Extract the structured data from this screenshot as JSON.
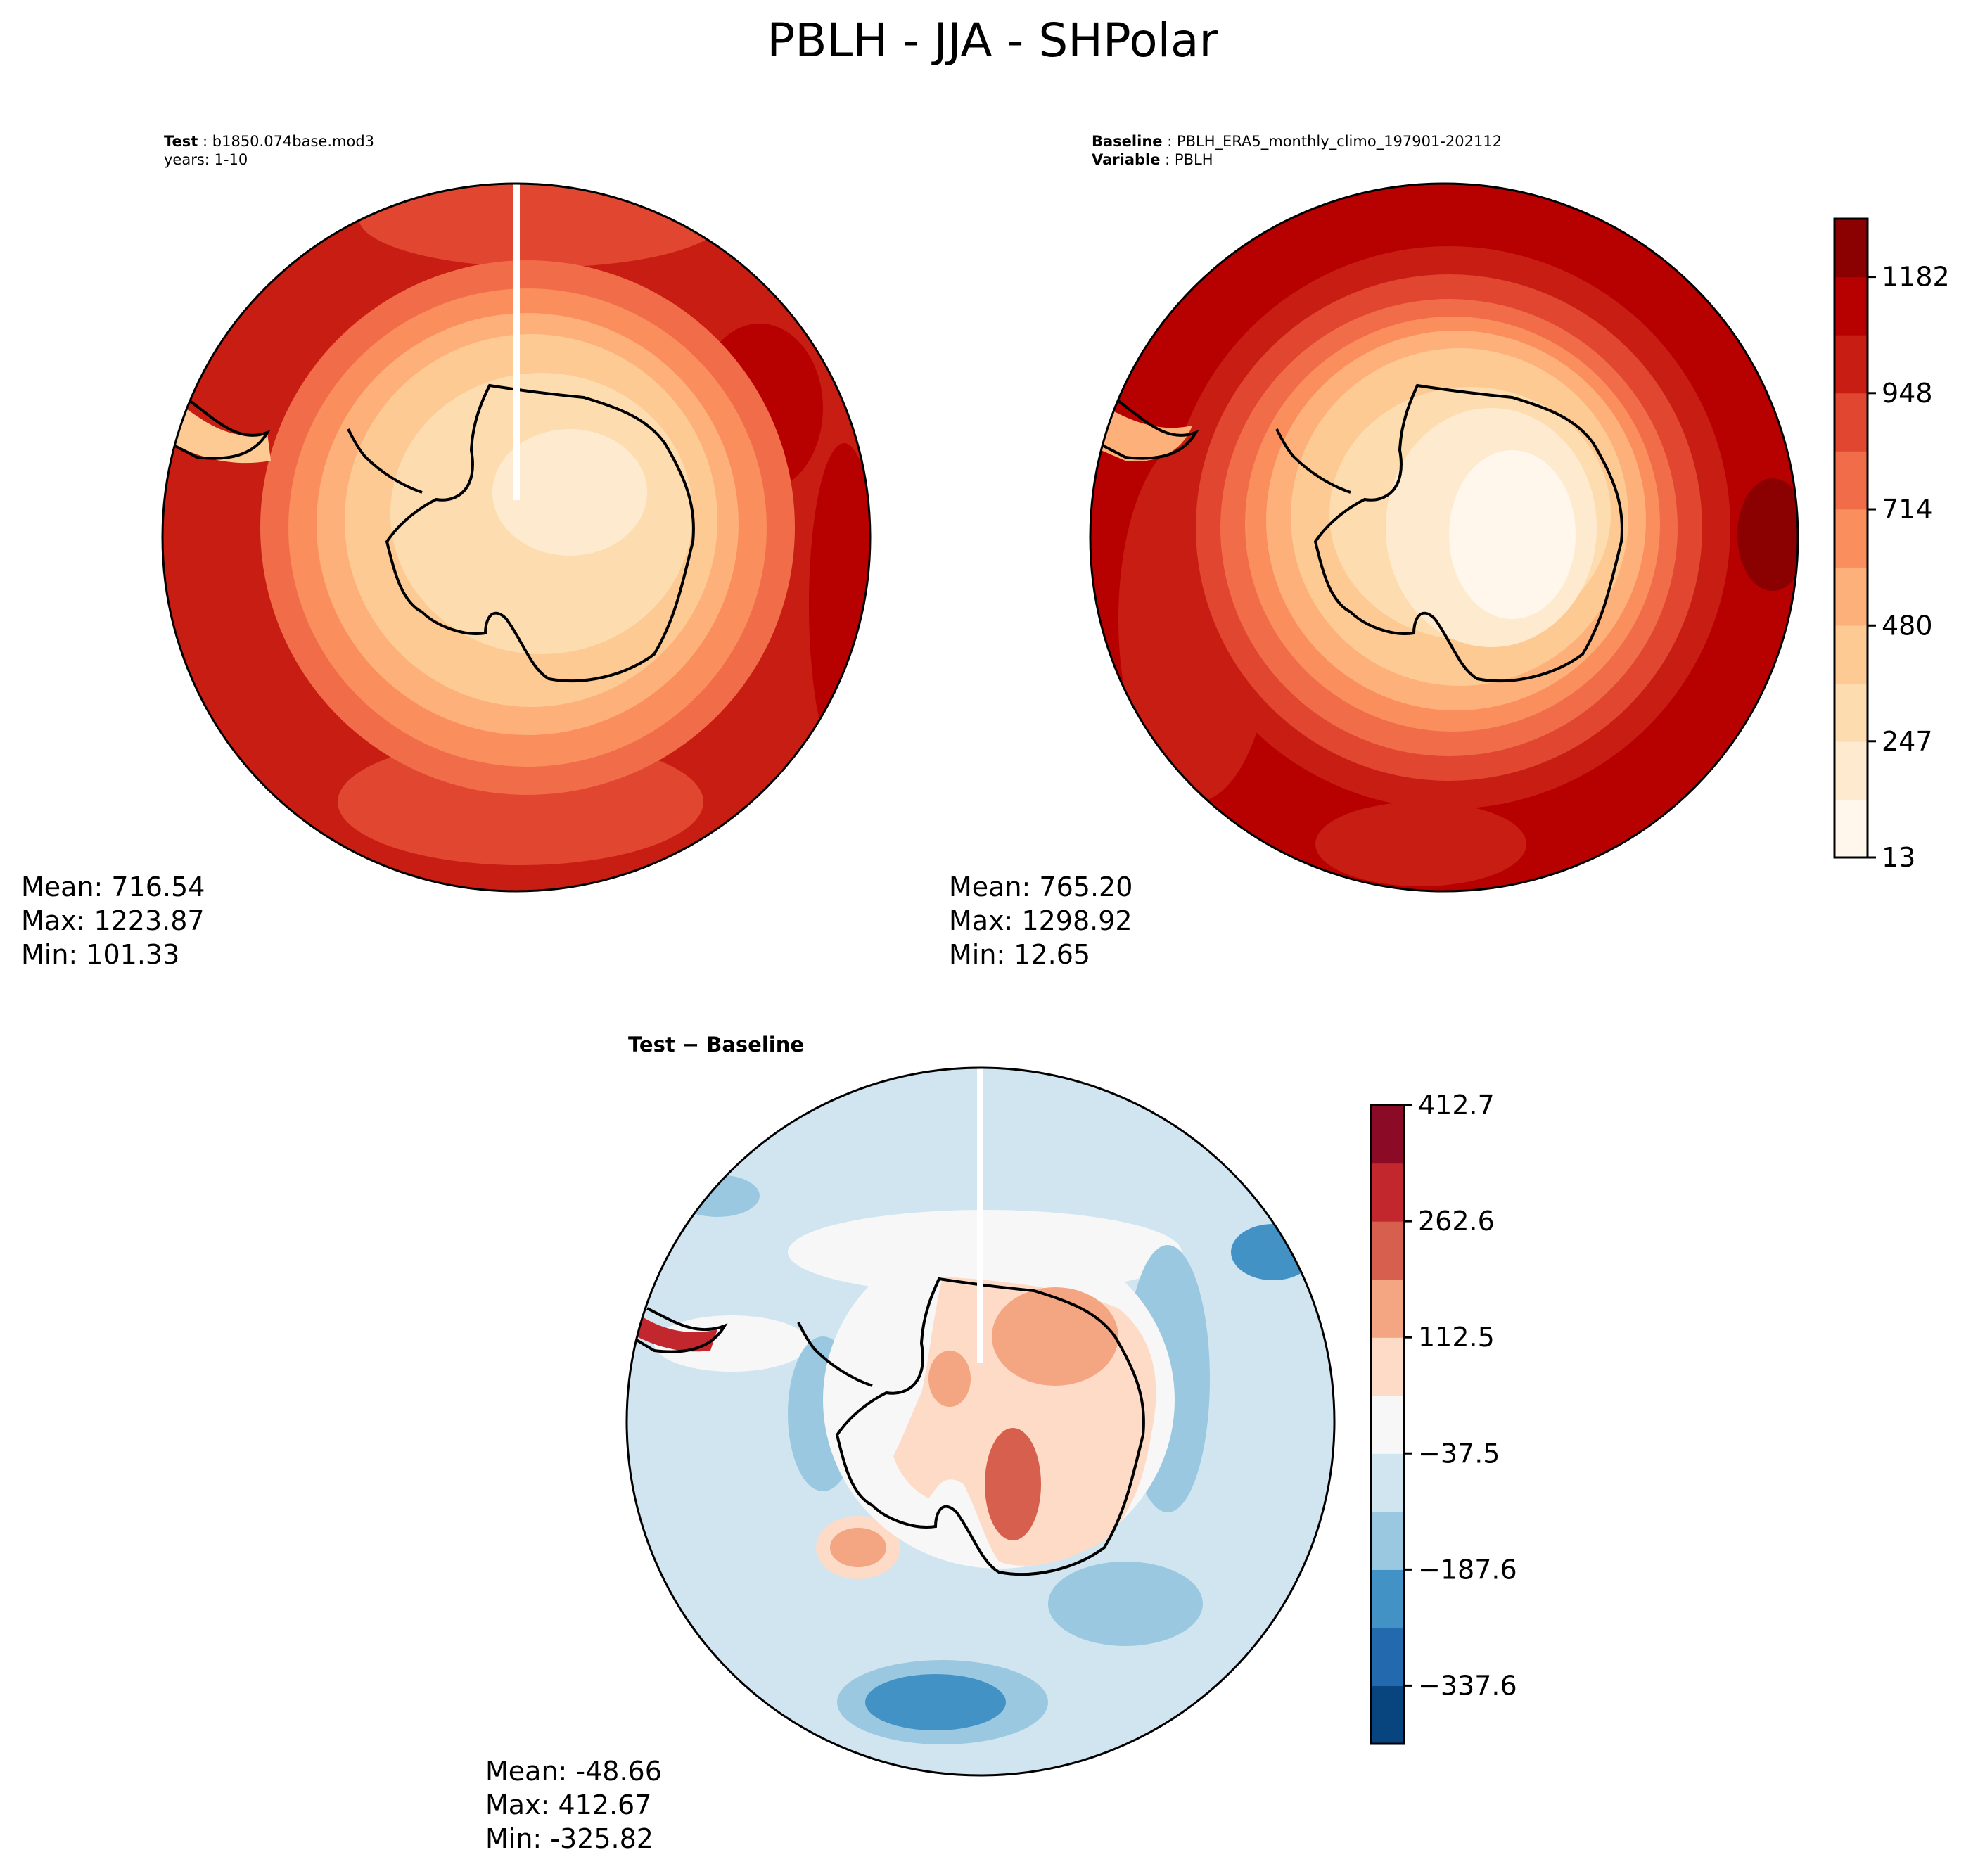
{
  "figure": {
    "title": "PBLH - JJA - SHPolar"
  },
  "chart_data": [
    {
      "type": "heatmap",
      "panel": "test",
      "projection": "south polar stereographic",
      "header_label": "Test",
      "header_value": "b1850.074base.mod3",
      "header_line2": "years: 1-10",
      "stats": {
        "mean": "Mean: 716.54",
        "max": "Max: 1223.87",
        "min": "Min: 101.33"
      },
      "colormap": "OrRd",
      "colorbar": "shared with baseline"
    },
    {
      "type": "heatmap",
      "panel": "baseline",
      "projection": "south polar stereographic",
      "header_label": "Baseline",
      "header_value": "PBLH_ERA5_monthly_climo_197901-202112",
      "header_label2": "Variable",
      "header_value2": "PBLH",
      "stats": {
        "mean": "Mean: 765.20",
        "max": "Max: 1298.92",
        "min": "Min: 12.65"
      },
      "colormap": "OrRd",
      "colorbar": {
        "range": [
          13,
          1299
        ],
        "ticks": [
          "1182",
          "948",
          "714",
          "480",
          "247",
          "13"
        ],
        "levels": 11,
        "colors": [
          "#fff7ec",
          "#feebcf",
          "#fddcaf",
          "#fdca94",
          "#fdb07a",
          "#fa8e5d",
          "#f16c49",
          "#e04630",
          "#c81d13",
          "#b70000",
          "#8b0000"
        ]
      }
    },
    {
      "type": "heatmap",
      "panel": "difference",
      "projection": "south polar stereographic",
      "header": "Test − Baseline",
      "stats": {
        "mean": "Mean: -48.66",
        "max": "Max: 412.67",
        "min": "Min: -325.82"
      },
      "colormap": "RdBu_r",
      "colorbar": {
        "range": [
          -412.7,
          412.7
        ],
        "ticks": [
          "412.7",
          "262.6",
          "112.5",
          "−37.5",
          "−187.6",
          "−337.6"
        ],
        "levels": 11,
        "colors": [
          "#08457f",
          "#2369ad",
          "#4292c6",
          "#9ac8e0",
          "#d1e5f0",
          "#f7f7f7",
          "#fddbc7",
          "#f4a582",
          "#d6604d",
          "#c1272d",
          "#8b0a26"
        ]
      }
    }
  ]
}
